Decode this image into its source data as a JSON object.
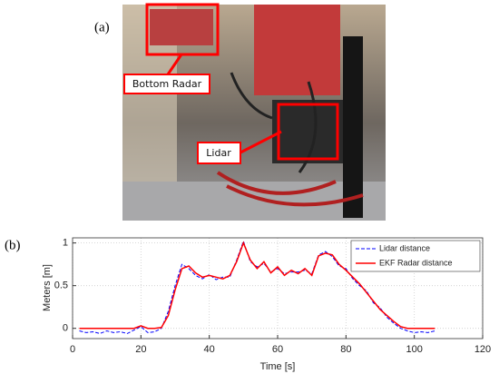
{
  "panel_labels": [
    "(a)",
    "(b)"
  ],
  "photo_labels": [
    "Bottom Radar",
    "Lidar"
  ],
  "chart_data": {
    "type": "line",
    "xlabel": "Time [s]",
    "ylabel": "Meters [m]",
    "x": [
      2,
      4,
      6,
      8,
      10,
      12,
      14,
      16,
      18,
      20,
      22,
      24,
      26,
      28,
      30,
      32,
      34,
      36,
      38,
      40,
      42,
      44,
      46,
      48,
      50,
      52,
      54,
      56,
      58,
      60,
      62,
      64,
      66,
      68,
      70,
      72,
      74,
      76,
      78,
      80,
      82,
      84,
      86,
      88,
      90,
      92,
      94,
      96,
      98,
      100,
      102,
      104,
      106
    ],
    "series": [
      {
        "name": "Lidar distance",
        "color": "#0000ff",
        "dash": true,
        "values": [
          -0.03,
          -0.05,
          -0.04,
          -0.06,
          -0.03,
          -0.05,
          -0.04,
          -0.06,
          -0.02,
          0.02,
          -0.05,
          -0.04,
          0.0,
          0.2,
          0.5,
          0.75,
          0.7,
          0.62,
          0.58,
          0.63,
          0.57,
          0.6,
          0.6,
          0.8,
          1.02,
          0.78,
          0.72,
          0.76,
          0.66,
          0.7,
          0.64,
          0.66,
          0.66,
          0.68,
          0.64,
          0.86,
          0.9,
          0.84,
          0.73,
          0.7,
          0.58,
          0.5,
          0.44,
          0.3,
          0.24,
          0.13,
          0.06,
          0.0,
          -0.03,
          -0.05,
          -0.04,
          -0.05,
          -0.03
        ]
      },
      {
        "name": "EKF Radar distance",
        "color": "#ff0000",
        "dash": false,
        "values": [
          0,
          0,
          0,
          0,
          0,
          0,
          0,
          0,
          0,
          0.03,
          0,
          0,
          0.01,
          0.15,
          0.45,
          0.7,
          0.73,
          0.65,
          0.6,
          0.62,
          0.6,
          0.58,
          0.62,
          0.78,
          1.0,
          0.8,
          0.7,
          0.78,
          0.65,
          0.72,
          0.62,
          0.68,
          0.64,
          0.7,
          0.62,
          0.85,
          0.88,
          0.86,
          0.75,
          0.68,
          0.6,
          0.52,
          0.42,
          0.32,
          0.22,
          0.15,
          0.08,
          0.02,
          0,
          0,
          0,
          0,
          0
        ]
      }
    ],
    "xlim": [
      0,
      120
    ],
    "xticks": [
      0,
      20,
      40,
      60,
      80,
      100,
      120
    ],
    "ylim": [
      -0.12,
      1.06
    ],
    "yticks": [
      0,
      0.5,
      1
    ],
    "grid": true,
    "legend": "upper right"
  }
}
